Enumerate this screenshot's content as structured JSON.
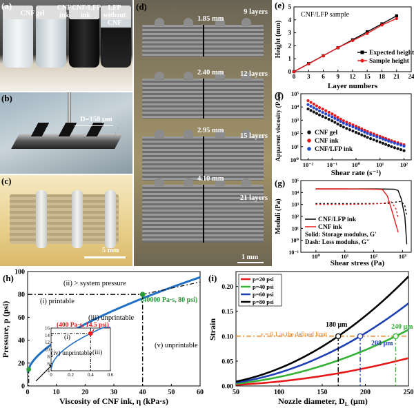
{
  "panel_a": {
    "label": "(a)",
    "vials": [
      {
        "name": "CNF gel",
        "color": "#e9eef0"
      },
      {
        "name": "CNF ink",
        "color": "#d4dde2"
      },
      {
        "name": "CNF/LFP ink",
        "color": "#1a1a1a"
      },
      {
        "name": "LFP without CNF",
        "color": "#2a2a2a"
      }
    ]
  },
  "panel_b": {
    "label": "(b)",
    "annotation": "D=150 μm"
  },
  "panel_c": {
    "label": "(c)",
    "scale": "5 mm"
  },
  "panel_d": {
    "label": "(d)",
    "scale": "1 mm",
    "samples": [
      {
        "layers": "9 layers",
        "height": "1.85 mm"
      },
      {
        "layers": "12 layers",
        "height": "2.40 mm"
      },
      {
        "layers": "15 layers",
        "height": "2.95 mm"
      },
      {
        "layers": "21 layers",
        "height": "4.10 mm"
      }
    ]
  },
  "panel_e": {
    "label": "(e)",
    "title": "CNF/LFP sample",
    "xlabel": "Layer numbers",
    "ylabel": "Height (mm)",
    "xticks": [
      "0",
      "3",
      "6",
      "9",
      "12",
      "15",
      "18",
      "21",
      "24"
    ],
    "yticks": [
      "0",
      "1",
      "2",
      "3",
      "4",
      "5"
    ],
    "legend": [
      "Expected height",
      "Sample height"
    ]
  },
  "panel_f": {
    "label": "(f)",
    "xlabel": "Shear rate (s⁻¹)",
    "ylabel": "Apparent viscosity (Pa.s)",
    "xticks": [
      "10⁻²",
      "10⁻¹",
      "10⁰",
      "10¹",
      "10²"
    ],
    "yticks": [
      "10⁵",
      "10⁴",
      "10³",
      "10²",
      "10¹",
      "10⁰"
    ],
    "legend": [
      "CNF gel",
      "CNF ink",
      "CNF/LFP ink"
    ]
  },
  "panel_g": {
    "label": "(g)",
    "xlabel": "Shear stress (Pa)",
    "ylabel": "Moduli (Pa)",
    "xticks": [
      "10⁰",
      "10¹",
      "10²",
      "10³"
    ],
    "yticks": [
      "10⁵",
      "10⁴",
      "10³",
      "10²",
      "10¹",
      "10⁰",
      "10⁻¹"
    ],
    "legend": [
      "CNF/LFP ink",
      "CNF ink"
    ],
    "notes": [
      "Solid: Storage modulus, G'",
      "Dash: Loss modulus, G''"
    ]
  },
  "panel_h": {
    "label": "(h)",
    "xlabel": "Viscosity of CNF ink, η (kPa·s)",
    "ylabel": "Pressure, p (psi)",
    "xticks": [
      "0",
      "10",
      "20",
      "30",
      "40",
      "50",
      "60"
    ],
    "yticks": [
      "0",
      "20",
      "40",
      "60",
      "80",
      "100"
    ],
    "regions": [
      "(i) printable",
      "(ii) > system pressure",
      "(iii) unprintable",
      "(v) unprintable"
    ],
    "point_main": "(40000 Pa·s, 80 psi)",
    "point_inset": "(400 Pa·s, 14.5 psi)",
    "inset": {
      "xticks": [
        "0",
        "0.2",
        "0.4",
        "0.6"
      ],
      "yticks": [
        "4",
        "6",
        "8",
        "10",
        "12",
        "14",
        "16"
      ],
      "regions": [
        "(i)",
        "(iv) unprintable",
        "(iii)"
      ]
    }
  },
  "panel_i": {
    "label": "(i)",
    "xlabel": "Nozzle diameter, D",
    "xlabel_sub": "L",
    "xlabel_unit": " (μm)",
    "ylabel": "Strain",
    "xticks": [
      "50",
      "100",
      "150",
      "200",
      "250"
    ],
    "yticks": [
      "0.00",
      "0.05",
      "0.10",
      "0.15",
      "0.20"
    ],
    "legend": [
      "p=20 psi",
      "p=40 psi",
      "p=60 psi",
      "p=80 psi"
    ],
    "limit_text": "ε = 0.1 as the defined limit",
    "marks": [
      "180 μm",
      "208 μm",
      "240 μm"
    ]
  },
  "chart_data": [
    {
      "type": "line",
      "panel": "e",
      "title": "CNF/LFP sample",
      "xlabel": "Layer numbers",
      "ylabel": "Height (mm)",
      "xlim": [
        0,
        24
      ],
      "ylim": [
        0,
        5
      ],
      "series": [
        {
          "name": "Expected height",
          "color": "#000000",
          "x": [
            0,
            3,
            6,
            9,
            12,
            15,
            18,
            21
          ],
          "y": [
            0,
            0.62,
            1.23,
            1.85,
            2.46,
            3.08,
            3.69,
            4.31
          ]
        },
        {
          "name": "Sample height",
          "color": "#e8191a",
          "x": [
            0,
            3,
            6,
            9,
            12,
            15,
            18,
            21
          ],
          "y": [
            0,
            0.6,
            1.22,
            1.85,
            2.4,
            2.95,
            3.6,
            4.1
          ]
        }
      ]
    },
    {
      "type": "scatter",
      "panel": "f",
      "xlabel": "Shear rate (s⁻¹)",
      "ylabel": "Apparent viscosity (Pa.s)",
      "xlim": [
        0.005,
        200
      ],
      "ylim": [
        1,
        100000
      ],
      "log_x": true,
      "log_y": true,
      "series": [
        {
          "name": "CNF gel",
          "color": "#111111",
          "x": [
            0.01,
            0.03,
            0.1,
            0.3,
            1,
            3,
            10,
            30,
            100
          ],
          "y": [
            7000,
            2500,
            900,
            300,
            120,
            50,
            22,
            10,
            5
          ]
        },
        {
          "name": "CNF ink",
          "color": "#e8191a",
          "x": [
            0.01,
            0.03,
            0.1,
            0.3,
            1,
            3,
            10,
            30,
            100
          ],
          "y": [
            30000,
            9000,
            3000,
            900,
            350,
            140,
            60,
            28,
            14
          ]
        },
        {
          "name": "CNF/LFP ink",
          "color": "#2244cc",
          "x": [
            0.01,
            0.03,
            0.1,
            0.3,
            1,
            3,
            10,
            30,
            100
          ],
          "y": [
            15000,
            5000,
            1800,
            600,
            250,
            100,
            45,
            22,
            11
          ]
        }
      ]
    },
    {
      "type": "line",
      "panel": "g",
      "xlabel": "Shear stress (Pa)",
      "ylabel": "Moduli (Pa)",
      "xlim": [
        0.3,
        2000
      ],
      "ylim": [
        0.1,
        100000
      ],
      "log_x": true,
      "log_y": true,
      "series": [
        {
          "name": "CNF/LFP ink G'",
          "color": "#000000",
          "x": [
            1,
            10,
            100,
            500,
            700,
            900,
            1200,
            1400
          ],
          "y": [
            20000,
            20000,
            20000,
            19000,
            15000,
            3000,
            100,
            0.5
          ]
        },
        {
          "name": "CNF/LFP ink G''",
          "color": "#000000",
          "x": [
            1,
            10,
            100,
            300,
            600,
            900,
            1200,
            1400
          ],
          "y": [
            1200,
            1200,
            1200,
            1200,
            1600,
            1800,
            800,
            100
          ]
        },
        {
          "name": "CNF ink G'",
          "color": "#e8191a",
          "x": [
            1,
            10,
            100,
            200,
            300,
            450,
            700
          ],
          "y": [
            20000,
            20000,
            19000,
            18000,
            5000,
            200,
            5
          ]
        },
        {
          "name": "CNF ink G''",
          "color": "#e8191a",
          "x": [
            1,
            10,
            100,
            200,
            300,
            400,
            600,
            700
          ],
          "y": [
            1000,
            1000,
            1100,
            1200,
            1500,
            1800,
            400,
            80
          ]
        }
      ]
    },
    {
      "type": "line",
      "panel": "h",
      "xlabel": "Viscosity of CNF ink, η (kPa·s)",
      "ylabel": "Pressure, p (psi)",
      "xlim": [
        0,
        60
      ],
      "ylim": [
        0,
        100
      ],
      "series": [
        {
          "name": "",
          "color": "#1f6fc4",
          "x": [
            0,
            0.4,
            2,
            5,
            10,
            20,
            30,
            40,
            50,
            60
          ],
          "y": [
            12,
            14.5,
            22,
            32,
            44,
            60,
            71,
            80,
            88,
            95
          ]
        }
      ]
    },
    {
      "type": "line",
      "panel": "i",
      "xlabel": "Nozzle diameter, DL (μm)",
      "ylabel": "Strain",
      "xlim": [
        50,
        250
      ],
      "ylim": [
        0,
        0.23
      ],
      "series": [
        {
          "name": "p=20 psi",
          "color": "#e8191a",
          "x": [
            50,
            100,
            150,
            200,
            250
          ],
          "y": [
            0.002,
            0.008,
            0.02,
            0.036,
            0.056
          ]
        },
        {
          "name": "p=40 psi",
          "color": "#33b233",
          "x": [
            50,
            100,
            150,
            200,
            250
          ],
          "y": [
            0.004,
            0.017,
            0.04,
            0.072,
            0.113
          ]
        },
        {
          "name": "p=60 psi",
          "color": "#1f3fb4",
          "x": [
            50,
            100,
            150,
            200,
            250
          ],
          "y": [
            0.006,
            0.025,
            0.059,
            0.106,
            0.166
          ]
        },
        {
          "name": "p=80 psi",
          "color": "#000000",
          "x": [
            50,
            100,
            150,
            200,
            250
          ],
          "y": [
            0.009,
            0.034,
            0.078,
            0.14,
            0.22
          ]
        }
      ]
    }
  ]
}
